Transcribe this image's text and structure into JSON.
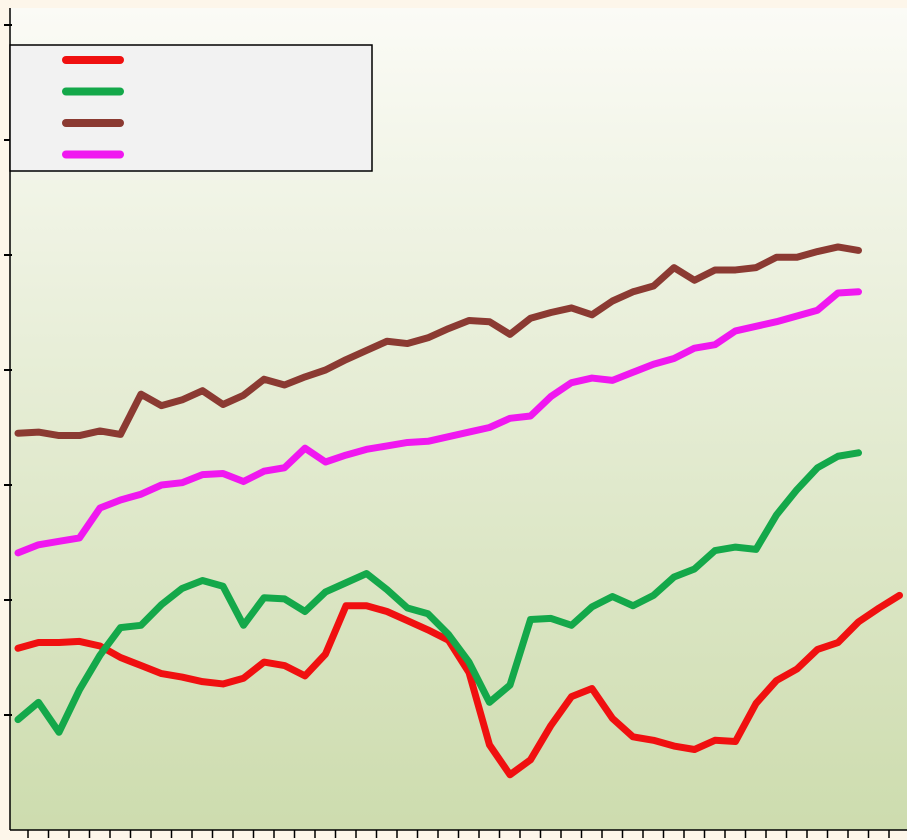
{
  "chart_data": {
    "type": "line",
    "categories": [
      null,
      null,
      null,
      null,
      null,
      null,
      null,
      null,
      null,
      null,
      null,
      null,
      null,
      null,
      null,
      null,
      null,
      null,
      null,
      null,
      null,
      null,
      null,
      null,
      null,
      null,
      null,
      null,
      null,
      null,
      null,
      null,
      null,
      null,
      null,
      null,
      null,
      null,
      null,
      null,
      null,
      null,
      null,
      null
    ],
    "series": [
      {
        "color": "#f01010",
        "values": [
          1.58,
          1.63,
          1.63,
          1.64,
          1.6,
          1.5,
          1.43,
          1.36,
          1.33,
          1.29,
          1.27,
          1.32,
          1.46,
          1.43,
          1.34,
          1.53,
          1.95,
          1.95,
          1.9,
          1.82,
          1.74,
          1.65,
          1.37,
          0.74,
          0.48,
          0.61,
          0.91,
          1.16,
          1.23,
          0.97,
          0.81,
          0.78,
          0.73,
          0.7,
          0.78,
          0.77,
          1.1,
          1.3,
          1.4,
          1.57,
          1.63,
          1.81,
          1.93,
          2.04
        ]
      },
      {
        "color": "#14a84a",
        "values": [
          0.96,
          1.11,
          0.85,
          1.22,
          1.52,
          1.76,
          1.78,
          1.96,
          2.1,
          2.17,
          2.12,
          1.78,
          2.02,
          2.01,
          1.9,
          2.07,
          2.15,
          2.23,
          2.09,
          1.93,
          1.88,
          1.7,
          1.46,
          1.11,
          1.26,
          1.83,
          1.84,
          1.78,
          1.94,
          2.03,
          1.95,
          2.04,
          2.2,
          2.27,
          2.43,
          2.46,
          2.44,
          2.74,
          2.96,
          3.15,
          3.25,
          3.28,
          null,
          null
        ]
      },
      {
        "color": "#8b3a32",
        "values": [
          3.45,
          3.46,
          3.43,
          3.43,
          3.47,
          3.44,
          3.79,
          3.69,
          3.74,
          3.82,
          3.7,
          3.78,
          3.92,
          3.87,
          3.94,
          4.0,
          4.09,
          4.17,
          4.25,
          4.23,
          4.28,
          4.36,
          4.43,
          4.42,
          4.31,
          4.45,
          4.5,
          4.54,
          4.48,
          4.6,
          4.68,
          4.73,
          4.89,
          4.78,
          4.87,
          4.87,
          4.89,
          4.98,
          4.98,
          5.03,
          5.07,
          5.04,
          null,
          null
        ]
      },
      {
        "color": "#f018f0",
        "values": [
          2.41,
          2.48,
          2.51,
          2.54,
          2.8,
          2.87,
          2.92,
          3.0,
          3.02,
          3.09,
          3.1,
          3.03,
          3.12,
          3.15,
          3.32,
          3.2,
          3.26,
          3.31,
          3.34,
          3.37,
          3.38,
          3.42,
          3.46,
          3.5,
          3.58,
          3.6,
          3.77,
          3.89,
          3.93,
          3.91,
          3.98,
          4.05,
          4.1,
          4.19,
          4.22,
          4.34,
          4.38,
          4.42,
          4.47,
          4.52,
          4.67,
          4.68,
          null,
          null
        ]
      }
    ],
    "ylim": [
      0,
      7
    ],
    "yticks": [
      1,
      2,
      3,
      4,
      5,
      6,
      7
    ],
    "legend": "upper left"
  }
}
